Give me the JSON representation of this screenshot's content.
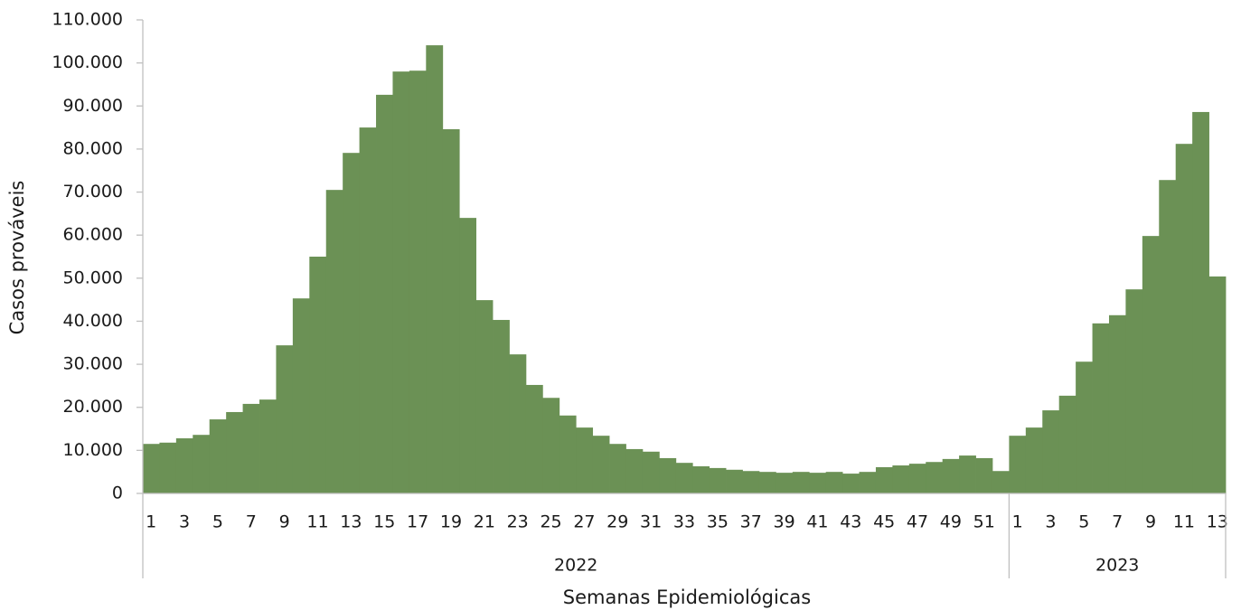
{
  "chart_data": {
    "type": "bar",
    "x_label": "Semanas Epidemiológicas",
    "y_label": "Casos prováveis",
    "groups": [
      "2022",
      "2023"
    ],
    "categories": [
      "1",
      null,
      "3",
      null,
      "5",
      null,
      "7",
      null,
      "9",
      null,
      "11",
      null,
      "13",
      null,
      "15",
      null,
      "17",
      null,
      "19",
      null,
      "21",
      null,
      "23",
      null,
      "25",
      null,
      "27",
      null,
      "29",
      null,
      "31",
      null,
      "33",
      null,
      "35",
      null,
      "37",
      null,
      "39",
      null,
      "41",
      null,
      "43",
      null,
      "45",
      null,
      "47",
      null,
      "49",
      null,
      "51",
      null,
      "1",
      null,
      "3",
      null,
      "5",
      null,
      "7",
      null,
      "9",
      null,
      "11",
      null,
      "13"
    ],
    "values": [
      11500,
      11800,
      12800,
      13600,
      17200,
      18900,
      20800,
      21800,
      34400,
      45300,
      55000,
      70500,
      79100,
      85000,
      92600,
      98000,
      98200,
      104100,
      84600,
      64000,
      44900,
      40300,
      32300,
      25200,
      22200,
      18100,
      15300,
      13400,
      11500,
      10300,
      9700,
      8200,
      7100,
      6300,
      5900,
      5500,
      5200,
      5000,
      4800,
      5000,
      4800,
      5000,
      4600,
      5000,
      6100,
      6500,
      6900,
      7300,
      8000,
      8800,
      8200,
      5200,
      13400,
      15300,
      19300,
      22700,
      30600,
      39500,
      41400,
      47400,
      59800,
      72800,
      81200,
      88600,
      50400
    ],
    "color": "#6b9155",
    "ylim": [
      0,
      110000
    ],
    "yticks": [
      0,
      {
        "value": 10000,
        "label": "10.000"
      },
      {
        "value": 20000,
        "label": "20.000"
      },
      {
        "value": 30000,
        "label": "30.000"
      },
      {
        "value": 40000,
        "label": "40.000"
      },
      {
        "value": 50000,
        "label": "50.000"
      },
      {
        "value": 60000,
        "label": "60.000"
      },
      {
        "value": 70000,
        "label": "70.000"
      },
      {
        "value": 80000,
        "label": "80.000"
      },
      {
        "value": 90000,
        "label": "90.000"
      },
      {
        "value": 100000,
        "label": "100.000"
      },
      {
        "value": 110000,
        "label": "110.000"
      }
    ],
    "grid": false
  }
}
